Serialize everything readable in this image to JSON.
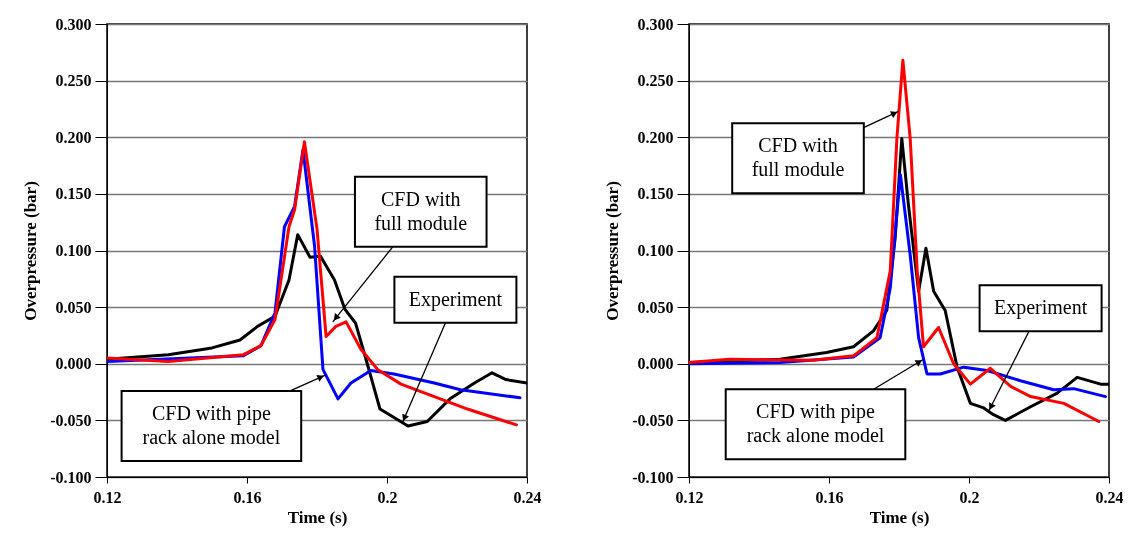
{
  "chart_data": [
    {
      "type": "line",
      "xlabel": "Time (s)",
      "ylabel": "Overpressure (bar)",
      "xlim": [
        0.12,
        0.24
      ],
      "xticks": [
        0.12,
        0.16,
        0.2,
        0.24
      ],
      "ylim": [
        -0.1,
        0.3
      ],
      "yticks": [
        {
          "value": -0.1,
          "label": "-0.100"
        },
        {
          "value": -0.05,
          "label": "-0.050"
        },
        {
          "value": 0,
          "label": "0.000"
        },
        {
          "value": 0.05,
          "label": "0.050"
        },
        {
          "value": 0.1,
          "label": "0.100"
        },
        {
          "value": 0.15,
          "label": "0.150"
        },
        {
          "value": 0.2,
          "label": "0.200"
        },
        {
          "value": 0.25,
          "label": "0.250"
        },
        {
          "value": 0.3,
          "label": "0.300"
        }
      ],
      "grid": "y",
      "series": [
        {
          "color": "#000000",
          "x": [
            0.12,
            0.1375,
            0.15,
            0.158,
            0.163,
            0.168,
            0.172,
            0.1745,
            0.178,
            0.181,
            0.185,
            0.188,
            0.191,
            0.194,
            0.198,
            0.206,
            0.2115,
            0.218,
            0.225,
            0.23,
            0.234,
            0.24
          ],
          "values": [
            0.004,
            0.008,
            0.014,
            0.021,
            0.033,
            0.042,
            0.074,
            0.114,
            0.094,
            0.095,
            0.074,
            0.048,
            0.036,
            0.004,
            -0.04,
            -0.055,
            -0.051,
            -0.031,
            -0.017,
            -0.008,
            -0.014,
            -0.017
          ]
        },
        {
          "color": "#0000ff",
          "x": [
            0.12,
            0.159,
            0.164,
            0.168,
            0.1707,
            0.1736,
            0.176,
            0.1793,
            0.1817,
            0.186,
            0.1897,
            0.1954,
            0.202,
            0.2135,
            0.221,
            0.238
          ],
          "values": [
            0.002,
            0.007,
            0.016,
            0.045,
            0.121,
            0.139,
            0.189,
            0.104,
            -0.005,
            -0.031,
            -0.017,
            -0.006,
            -0.009,
            -0.017,
            -0.023,
            -0.03
          ]
        },
        {
          "color": "#ff0000",
          "x": [
            0.12,
            0.1375,
            0.159,
            0.164,
            0.168,
            0.172,
            0.1736,
            0.1764,
            0.18,
            0.1826,
            0.1854,
            0.1883,
            0.1925,
            0.1973,
            0.204,
            0.2135,
            0.223,
            0.237
          ],
          "values": [
            0.005,
            0.002,
            0.008,
            0.016,
            0.039,
            0.121,
            0.136,
            0.196,
            0.119,
            0.024,
            0.033,
            0.037,
            0.013,
            -0.005,
            -0.018,
            -0.029,
            -0.04,
            -0.054
          ]
        }
      ],
      "annotations": [
        {
          "text": "CFD with\nfull module",
          "x": 0.1845,
          "y": 0.037
        },
        {
          "text": "CFD with pipe\nrack alone model",
          "x": 0.1824,
          "y": -0.01
        },
        {
          "text": "Experiment",
          "x": 0.2044,
          "y": -0.052
        }
      ]
    },
    {
      "type": "line",
      "xlabel": "Time (s)",
      "ylabel": "Overpressure (bar)",
      "xlim": [
        0.12,
        0.24
      ],
      "xticks": [
        0.12,
        0.16,
        0.2,
        0.24
      ],
      "ylim": [
        -0.1,
        0.3
      ],
      "yticks": [
        {
          "value": -0.1,
          "label": "-0.100"
        },
        {
          "value": -0.05,
          "label": "-0.050"
        },
        {
          "value": 0,
          "label": "0.000"
        },
        {
          "value": 0.05,
          "label": "0.050"
        },
        {
          "value": 0.1,
          "label": "0.100"
        },
        {
          "value": 0.15,
          "label": "0.150"
        },
        {
          "value": 0.2,
          "label": "0.200"
        },
        {
          "value": 0.25,
          "label": "0.250"
        },
        {
          "value": 0.3,
          "label": "0.300"
        }
      ],
      "grid": "y",
      "series": [
        {
          "color": "#000000",
          "x": [
            0.12,
            0.146,
            0.1593,
            0.167,
            0.1727,
            0.1765,
            0.1789,
            0.1808,
            0.1827,
            0.1856,
            0.1877,
            0.1899,
            0.1932,
            0.1966,
            0.2004,
            0.2042,
            0.207,
            0.2104,
            0.2176,
            0.2252,
            0.2309,
            0.2376,
            0.24
          ],
          "values": [
            0.001,
            0.004,
            0.01,
            0.015,
            0.029,
            0.047,
            0.111,
            0.199,
            0.14,
            0.064,
            0.102,
            0.064,
            0.047,
            -0.003,
            -0.035,
            -0.039,
            -0.045,
            -0.05,
            -0.038,
            -0.026,
            -0.012,
            -0.018,
            -0.018
          ]
        },
        {
          "color": "#0000ff",
          "x": [
            0.12,
            0.146,
            0.167,
            0.1746,
            0.1775,
            0.1804,
            0.1832,
            0.1856,
            0.188,
            0.1918,
            0.1985,
            0.2052,
            0.2147,
            0.2242,
            0.2299,
            0.239
          ],
          "values": [
            0.0,
            0.001,
            0.006,
            0.023,
            0.067,
            0.167,
            0.096,
            0.023,
            -0.009,
            -0.009,
            -0.003,
            -0.006,
            -0.015,
            -0.023,
            -0.022,
            -0.029
          ]
        },
        {
          "color": "#ff0000",
          "x": [
            0.12,
            0.1316,
            0.1555,
            0.167,
            0.1737,
            0.1775,
            0.1794,
            0.1811,
            0.1832,
            0.1852,
            0.187,
            0.1913,
            0.1956,
            0.2004,
            0.2061,
            0.2119,
            0.2176,
            0.2271,
            0.2371
          ],
          "values": [
            0.001,
            0.004,
            0.003,
            0.007,
            0.023,
            0.082,
            0.199,
            0.268,
            0.199,
            0.082,
            0.015,
            0.032,
            0.0,
            -0.018,
            -0.004,
            -0.02,
            -0.029,
            -0.035,
            -0.051
          ]
        }
      ],
      "annotations": [
        {
          "text": "CFD with\nfull module",
          "x": 0.18,
          "y": 0.223
        },
        {
          "text": "CFD with pipe\nrack alone model",
          "x": 0.187,
          "y": 0.004
        },
        {
          "text": "Experiment",
          "x": 0.2056,
          "y": -0.042
        }
      ]
    }
  ]
}
